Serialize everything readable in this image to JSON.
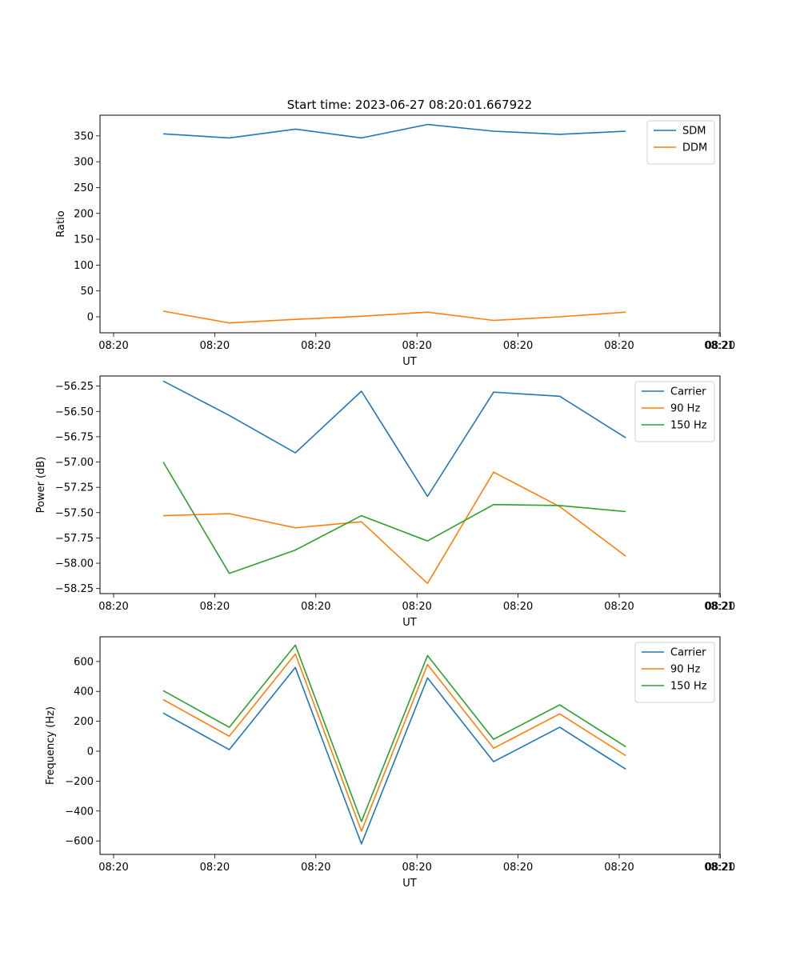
{
  "figure_title": "Start time: 2023-06-27 08:20:01.667922",
  "colors": {
    "blue": "#1f77b4",
    "orange": "#ff7f0e",
    "green": "#2ca02c"
  },
  "chart_data": [
    {
      "type": "line",
      "title": "Start time: 2023-06-27 08:20:01.667922",
      "xlabel": "UT",
      "ylabel": "Ratio",
      "x_ticks": [
        "08:20",
        "08:20",
        "08:20",
        "08:20",
        "08:20",
        "08:20",
        "08:20",
        "08:21"
      ],
      "x_points": [
        1,
        2,
        3,
        4,
        5,
        6,
        7,
        8
      ],
      "xlim": [
        0.25,
        9.25
      ],
      "ylim": [
        -31,
        390
      ],
      "y_ticks": [
        0,
        50,
        100,
        150,
        200,
        250,
        300,
        350
      ],
      "legend_position": "top-right",
      "grid": false,
      "series": [
        {
          "name": "SDM",
          "color": "#1f77b4",
          "values": [
            354,
            346,
            363,
            346,
            372,
            359,
            353,
            359
          ]
        },
        {
          "name": "DDM",
          "color": "#ff7f0e",
          "values": [
            11,
            -12,
            -5,
            1,
            9,
            -7,
            0,
            9
          ]
        }
      ]
    },
    {
      "type": "line",
      "xlabel": "UT",
      "ylabel": "Power (dB)",
      "x_ticks": [
        "08:20",
        "08:20",
        "08:20",
        "08:20",
        "08:20",
        "08:20",
        "08:20",
        "08:21"
      ],
      "x_points": [
        1,
        2,
        3,
        4,
        5,
        6,
        7,
        8
      ],
      "xlim": [
        0.25,
        9.25
      ],
      "ylim": [
        -58.3,
        -56.15
      ],
      "y_ticks": [
        -58.25,
        -58.0,
        -57.75,
        -57.5,
        -57.25,
        -57.0,
        -56.75,
        -56.5,
        -56.25
      ],
      "legend_position": "top-right",
      "grid": false,
      "series": [
        {
          "name": "Carrier",
          "color": "#1f77b4",
          "values": [
            -56.2,
            -56.54,
            -56.91,
            -56.3,
            -57.34,
            -56.31,
            -56.35,
            -56.76
          ]
        },
        {
          "name": "90 Hz",
          "color": "#ff7f0e",
          "values": [
            -57.53,
            -57.51,
            -57.65,
            -57.59,
            -58.2,
            -57.1,
            -57.44,
            -57.93
          ]
        },
        {
          "name": "150 Hz",
          "color": "#2ca02c",
          "values": [
            -57.0,
            -58.1,
            -57.87,
            -57.53,
            -57.78,
            -57.42,
            -57.43,
            -57.49
          ]
        }
      ]
    },
    {
      "type": "line",
      "xlabel": "UT",
      "ylabel": "Frequency (Hz)",
      "x_ticks": [
        "08:20",
        "08:20",
        "08:20",
        "08:20",
        "08:20",
        "08:20",
        "08:20",
        "08:21"
      ],
      "x_points": [
        1,
        2,
        3,
        4,
        5,
        6,
        7,
        8
      ],
      "xlim": [
        0.25,
        9.25
      ],
      "ylim": [
        -690,
        765
      ],
      "y_ticks": [
        -600,
        -400,
        -200,
        0,
        200,
        400,
        600
      ],
      "legend_position": "top-right",
      "grid": false,
      "series": [
        {
          "name": "Carrier",
          "color": "#1f77b4",
          "values": [
            255,
            10,
            560,
            -620,
            490,
            -70,
            160,
            -120
          ]
        },
        {
          "name": "90 Hz",
          "color": "#ff7f0e",
          "values": [
            345,
            100,
            650,
            -535,
            580,
            20,
            250,
            -30
          ]
        },
        {
          "name": "150 Hz",
          "color": "#2ca02c",
          "values": [
            405,
            160,
            710,
            -470,
            640,
            80,
            310,
            30
          ]
        }
      ]
    }
  ]
}
